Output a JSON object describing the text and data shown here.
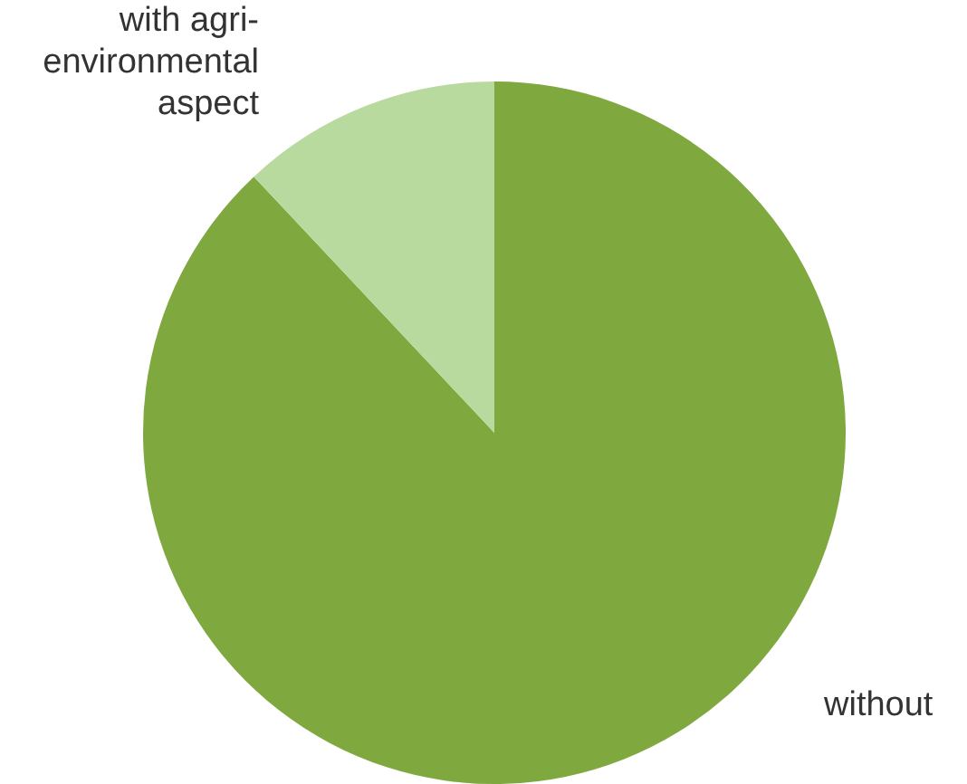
{
  "chart_data": {
    "type": "pie",
    "categories": [
      "without",
      "with agri-environmental aspect"
    ],
    "values": [
      88,
      12
    ],
    "colors": [
      "#7fa83f",
      "#b9da9e"
    ],
    "legend": false
  }
}
